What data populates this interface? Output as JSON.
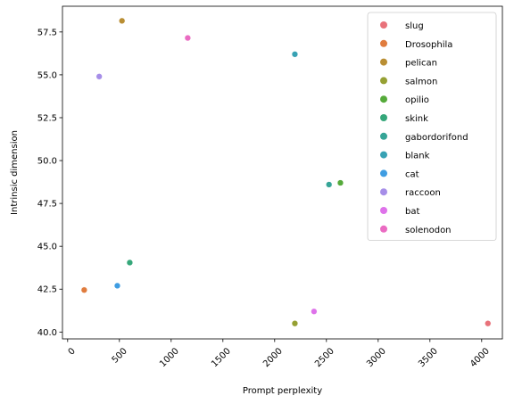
{
  "chart_data": {
    "type": "scatter",
    "xlabel": "Prompt perplexity",
    "ylabel": "Intrinsic dimension",
    "xlim": [
      -50,
      4200
    ],
    "ylim": [
      39.6,
      59.0
    ],
    "xticks": [
      0,
      500,
      1000,
      1500,
      2000,
      2500,
      3000,
      3500,
      4000
    ],
    "yticks": [
      40.0,
      42.5,
      45.0,
      47.5,
      50.0,
      52.5,
      55.0,
      57.5
    ],
    "xtick_labels": [
      "0",
      "500",
      "1000",
      "1500",
      "2000",
      "2500",
      "3000",
      "3500",
      "4000"
    ],
    "ytick_labels": [
      "40.0",
      "42.5",
      "45.0",
      "47.5",
      "50.0",
      "52.5",
      "55.0",
      "57.5"
    ],
    "grid": false,
    "legend_position": "top-right",
    "series": [
      {
        "name": "slug",
        "color": "#e8727a",
        "x": 4060,
        "y": 40.5
      },
      {
        "name": "Drosophila",
        "color": "#e07c3e",
        "x": 160,
        "y": 42.45
      },
      {
        "name": "pelican",
        "color": "#b98e33",
        "x": 525,
        "y": 58.15
      },
      {
        "name": "salmon",
        "color": "#96a033",
        "x": 2195,
        "y": 40.5
      },
      {
        "name": "opilio",
        "color": "#55aa3a",
        "x": 2635,
        "y": 48.7
      },
      {
        "name": "skink",
        "color": "#35a77a",
        "x": 600,
        "y": 44.05
      },
      {
        "name": "gabordorifond",
        "color": "#36a597",
        "x": 2525,
        "y": 48.6
      },
      {
        "name": "blank",
        "color": "#38a2b4",
        "x": 2195,
        "y": 56.2
      },
      {
        "name": "cat",
        "color": "#3f9de2",
        "x": 480,
        "y": 42.7
      },
      {
        "name": "raccoon",
        "color": "#a68ee8",
        "x": 305,
        "y": 54.9
      },
      {
        "name": "bat",
        "color": "#de72ea",
        "x": 2380,
        "y": 41.2
      },
      {
        "name": "solenodon",
        "color": "#ea6bc2",
        "x": 1160,
        "y": 57.15
      }
    ]
  }
}
